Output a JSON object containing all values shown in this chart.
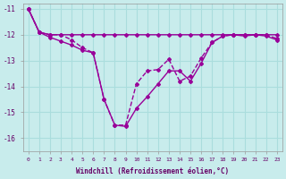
{
  "xlabel": "Windchill (Refroidissement éolien,°C)",
  "background_color": "#c8ecec",
  "grid_color": "#aadddd",
  "line_color": "#990099",
  "hours": [
    0,
    1,
    2,
    3,
    4,
    5,
    6,
    7,
    8,
    9,
    10,
    11,
    12,
    13,
    14,
    15,
    16,
    17,
    18,
    19,
    20,
    21,
    22,
    23
  ],
  "series1": [
    -11.0,
    -11.9,
    -12.0,
    -12.0,
    -12.2,
    -12.5,
    -12.7,
    -14.5,
    -15.5,
    -15.5,
    -13.9,
    -13.4,
    -13.35,
    -12.95,
    -13.8,
    -13.6,
    -12.9,
    -12.3,
    -12.05,
    -12.0,
    -12.0,
    -12.0,
    -12.0,
    -12.15
  ],
  "series2": [
    -11.0,
    -11.9,
    -12.1,
    -12.25,
    -12.4,
    -12.6,
    -12.7,
    -14.5,
    -15.5,
    -15.55,
    -14.85,
    -14.4,
    -13.9,
    -13.4,
    -13.4,
    -13.8,
    -13.1,
    -12.3,
    -12.05,
    -12.0,
    -12.05,
    -12.0,
    -12.05,
    -12.2
  ],
  "series3": [
    -11.0,
    -11.9,
    -12.0,
    -12.0,
    -12.0,
    -12.0,
    -12.0,
    -12.0,
    -12.0,
    -12.0,
    -12.0,
    -12.0,
    -12.0,
    -12.0,
    -12.0,
    -12.0,
    -12.0,
    -12.0,
    -12.0,
    -12.0,
    -12.0,
    -12.0,
    -12.0,
    -12.0
  ],
  "ylim": [
    -16.5,
    -10.8
  ],
  "yticks": [
    -16,
    -15,
    -14,
    -13,
    -12,
    -11
  ],
  "xticks": [
    0,
    1,
    2,
    3,
    4,
    5,
    6,
    7,
    8,
    9,
    10,
    11,
    12,
    13,
    14,
    15,
    16,
    17,
    18,
    19,
    20,
    21,
    22,
    23
  ]
}
